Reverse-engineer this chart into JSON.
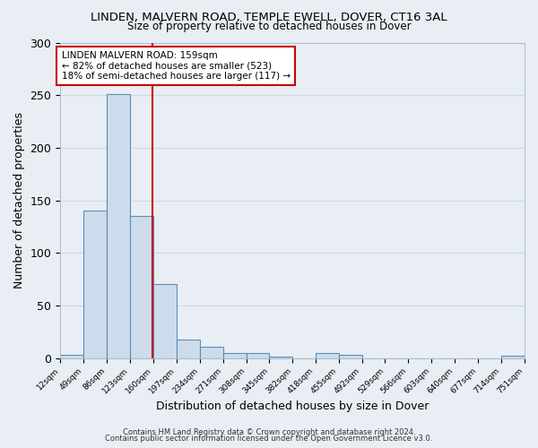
{
  "title": "LINDEN, MALVERN ROAD, TEMPLE EWELL, DOVER, CT16 3AL",
  "subtitle": "Size of property relative to detached houses in Dover",
  "xlabel": "Distribution of detached houses by size in Dover",
  "ylabel": "Number of detached properties",
  "bar_left_edges": [
    12,
    49,
    86,
    123,
    160,
    197,
    234,
    271,
    308,
    345,
    382,
    418,
    455,
    492,
    529,
    566,
    603,
    640,
    677,
    714
  ],
  "bar_heights": [
    3,
    140,
    251,
    135,
    70,
    18,
    11,
    5,
    5,
    1,
    0,
    5,
    3,
    0,
    0,
    0,
    0,
    0,
    0,
    2
  ],
  "bin_width": 37,
  "bar_color": "#cddcec",
  "bar_edge_color": "#5a8db8",
  "fig_background_color": "#e8eef4",
  "plot_background_color": "#e8eef4",
  "grid_color": "#d0d8e0",
  "vline_x": 159,
  "vline_color": "#cc0000",
  "annotation_box_color": "#cc0000",
  "annotation_lines": [
    "LINDEN MALVERN ROAD: 159sqm",
    "← 82% of detached houses are smaller (523)",
    "18% of semi-detached houses are larger (117) →"
  ],
  "ylim": [
    0,
    300
  ],
  "yticks": [
    0,
    50,
    100,
    150,
    200,
    250,
    300
  ],
  "xtick_labels": [
    "12sqm",
    "49sqm",
    "86sqm",
    "123sqm",
    "160sqm",
    "197sqm",
    "234sqm",
    "271sqm",
    "308sqm",
    "345sqm",
    "382sqm",
    "418sqm",
    "455sqm",
    "492sqm",
    "529sqm",
    "566sqm",
    "603sqm",
    "640sqm",
    "677sqm",
    "714sqm",
    "751sqm"
  ],
  "footnote1": "Contains HM Land Registry data © Crown copyright and database right 2024.",
  "footnote2": "Contains public sector information licensed under the Open Government Licence v3.0."
}
